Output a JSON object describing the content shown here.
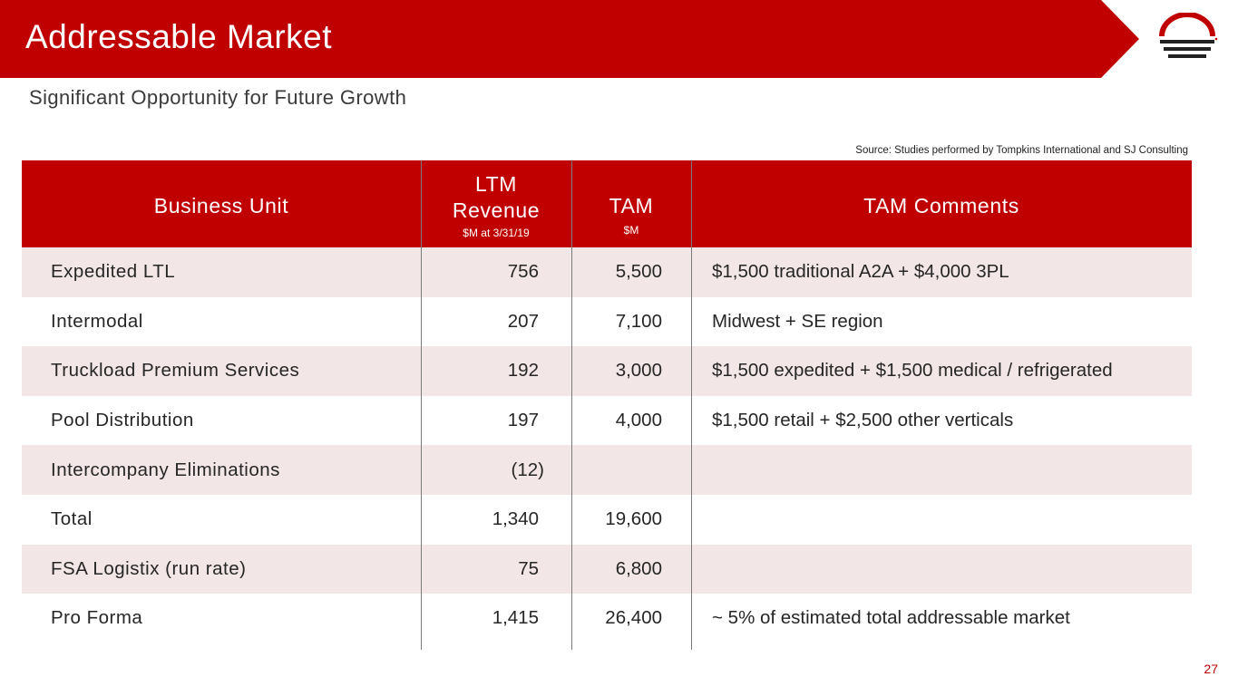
{
  "header": {
    "title": "Addressable Market",
    "subtitle": "Significant Opportunity for Future Growth",
    "logo_icon": "sunset-lines-logo-icon"
  },
  "source_note": "Source: Studies performed by Tompkins International and SJ Consulting",
  "table": {
    "columns": {
      "business_unit": "Business Unit",
      "ltm_line1": "LTM",
      "ltm_line2": "Revenue",
      "ltm_sub": "$M at 3/31/19",
      "tam": "TAM",
      "tam_sub": "$M",
      "comments": "TAM Comments"
    },
    "rows": [
      {
        "unit": "Expedited LTL",
        "ltm": "756",
        "tam": "5,500",
        "comment": "$1,500 traditional A2A + $4,000 3PL"
      },
      {
        "unit": "Intermodal",
        "ltm": "207",
        "tam": "7,100",
        "comment": "Midwest + SE region"
      },
      {
        "unit": "Truckload Premium Services",
        "ltm": "192",
        "tam": "3,000",
        "comment": "$1,500 expedited + $1,500 medical / refrigerated"
      },
      {
        "unit": "Pool Distribution",
        "ltm": "197",
        "tam": "4,000",
        "comment": "$1,500 retail + $2,500 other verticals"
      },
      {
        "unit": "Intercompany Eliminations",
        "ltm": "(12)",
        "tam": "",
        "comment": ""
      },
      {
        "unit": "Total",
        "ltm": "1,340",
        "tam": "19,600",
        "comment": ""
      },
      {
        "unit": "FSA Logistix (run rate)",
        "ltm": "75",
        "tam": "6,800",
        "comment": ""
      },
      {
        "unit": "Pro Forma",
        "ltm": "1,415",
        "tam": "26,400",
        "comment": "~ 5% of estimated total addressable market"
      }
    ]
  },
  "page_number": "27",
  "colors": {
    "brand_red": "#c00000",
    "row_shade": "#f3e6e6"
  }
}
